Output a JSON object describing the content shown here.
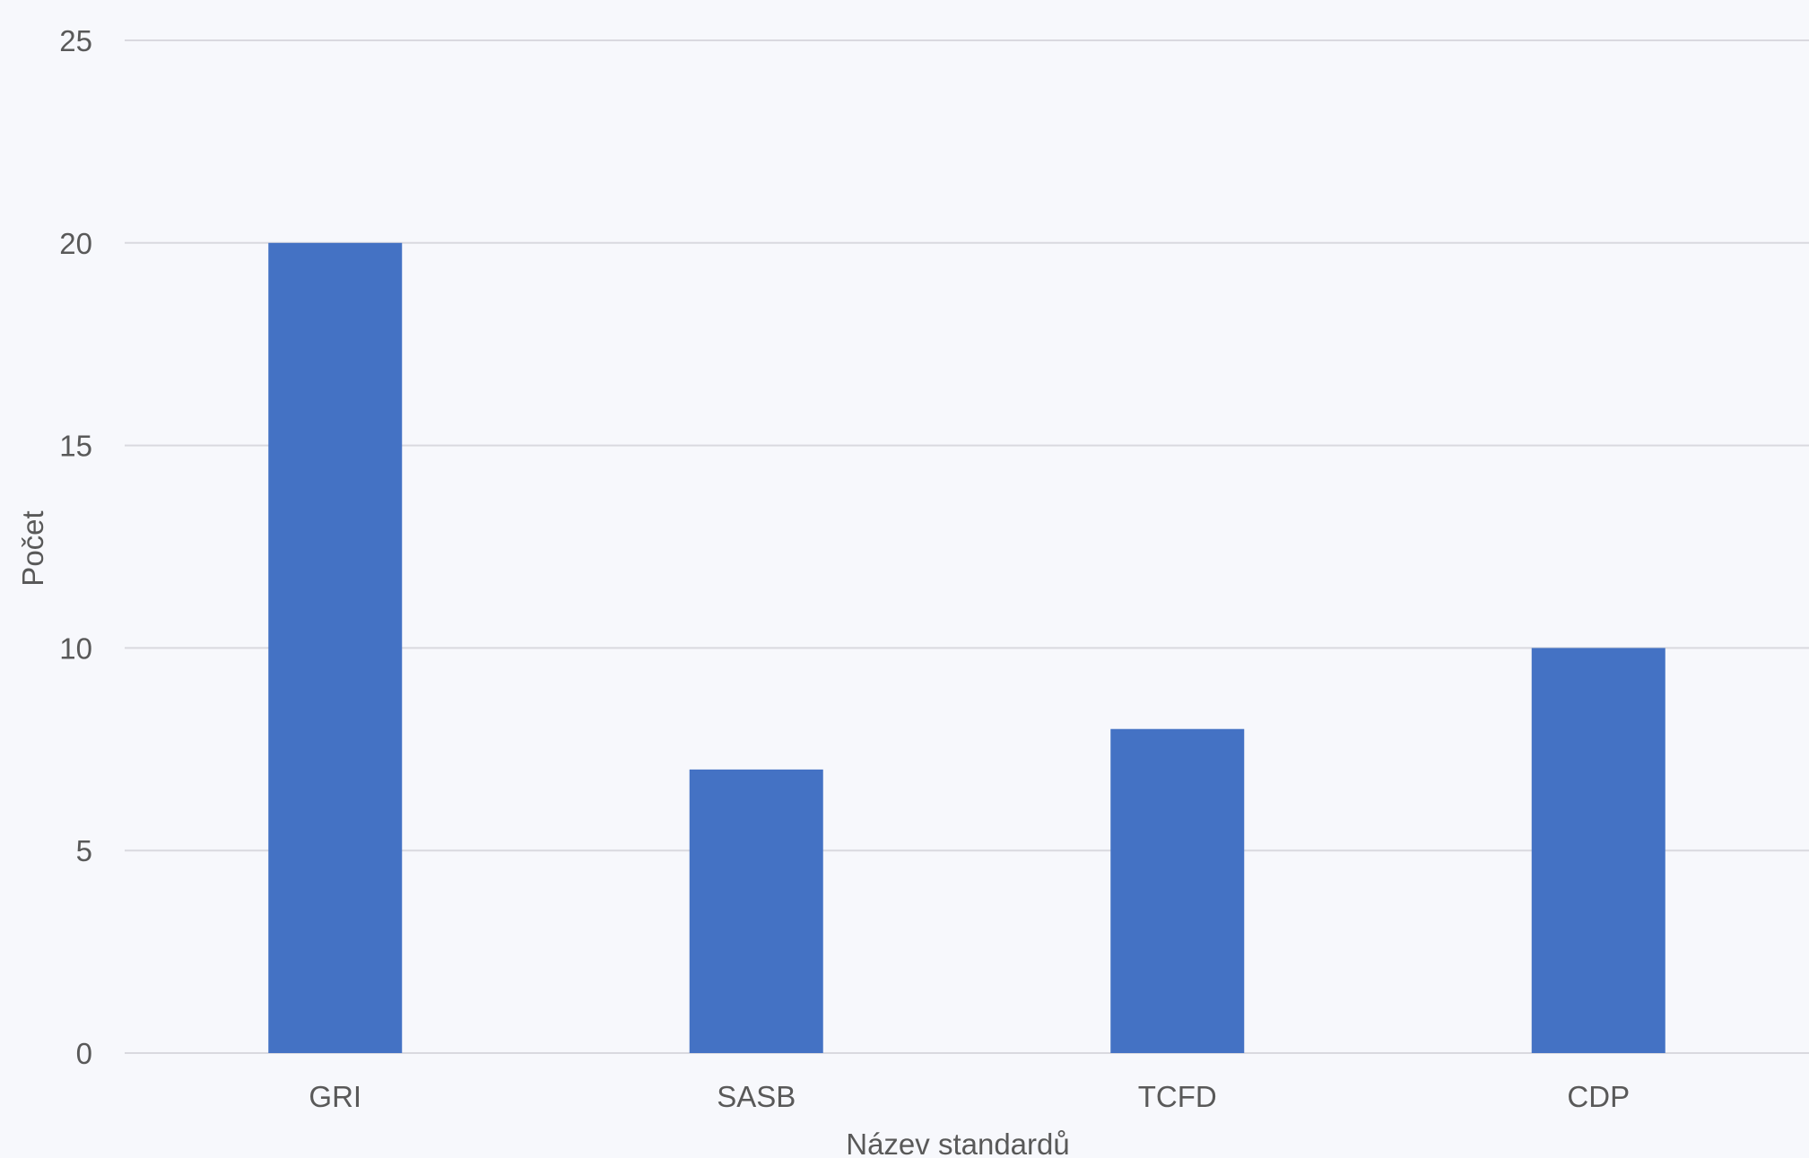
{
  "chart_data": {
    "type": "bar",
    "categories": [
      "GRI",
      "SASB",
      "TCFD",
      "CDP"
    ],
    "series": [
      {
        "values": [
          20,
          7,
          8,
          10
        ]
      }
    ],
    "xlabel": "Název standardů",
    "ylabel": "Počet",
    "ylim": [
      0,
      25
    ],
    "yticks": [
      0,
      5,
      10,
      15,
      20,
      25
    ],
    "grid": true,
    "legend": "none",
    "colors": {
      "bar": "#4472c4",
      "background": "#f7f8fc",
      "gridline": "#d9d9df",
      "text": "#595959"
    }
  }
}
